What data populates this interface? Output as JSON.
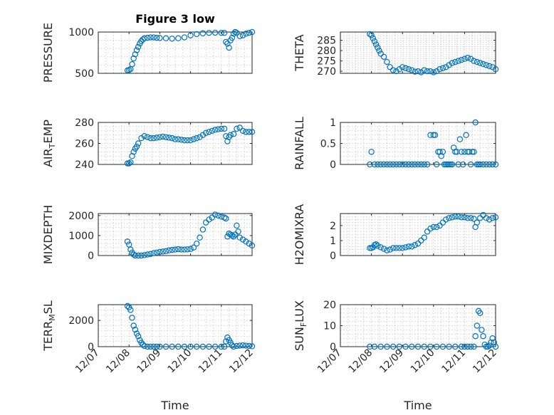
{
  "colors": {
    "marker": "#0072BD",
    "axis": "#262626",
    "grid": "#c8c8c8"
  },
  "chart_data": [
    {
      "type": "scatter",
      "title": "Figure 3 low",
      "ylabel_parts": [
        "PRESSURE"
      ],
      "xlim": [
        0,
        5
      ],
      "ylim": [
        500,
        1000
      ],
      "yticks": [
        500,
        1000
      ],
      "ytick_labels": [
        "500",
        "1000"
      ],
      "xticks": [
        0,
        1,
        2,
        3,
        4,
        5
      ],
      "xtick_labels": [],
      "xlabel": "",
      "grid": true,
      "series": [
        {
          "x": [
            0.95,
            1.0,
            1.05,
            1.1,
            1.15,
            1.2,
            1.25,
            1.3,
            1.35,
            1.4,
            1.45,
            1.5,
            1.6,
            1.7,
            1.8,
            1.9,
            2.0,
            2.2,
            2.4,
            2.6,
            2.8,
            3.0,
            3.2,
            3.4,
            3.6,
            3.8,
            4.0,
            4.1,
            4.15,
            4.2,
            4.25,
            4.3,
            4.35,
            4.4,
            4.45,
            4.5,
            4.6,
            4.7,
            4.8,
            4.9,
            5.0
          ],
          "y": [
            535,
            540,
            550,
            610,
            680,
            730,
            780,
            820,
            860,
            890,
            910,
            925,
            930,
            935,
            935,
            930,
            928,
            925,
            920,
            925,
            935,
            960,
            975,
            985,
            990,
            992,
            990,
            990,
            880,
            860,
            810,
            900,
            930,
            980,
            1000,
            990,
            950,
            960,
            980,
            990,
            1000
          ]
        }
      ]
    },
    {
      "type": "scatter",
      "title": "",
      "ylabel_parts": [
        "THETA"
      ],
      "xlim": [
        0,
        5
      ],
      "ylim": [
        269,
        289
      ],
      "yticks": [
        270,
        275,
        280,
        285
      ],
      "ytick_labels": [
        "270",
        "275",
        "280",
        "285"
      ],
      "xticks": [
        0,
        1,
        2,
        3,
        4,
        5
      ],
      "xtick_labels": [],
      "xlabel": "",
      "grid": true,
      "series": [
        {
          "x": [
            0.95,
            1.0,
            1.05,
            1.1,
            1.15,
            1.2,
            1.25,
            1.3,
            1.4,
            1.5,
            1.6,
            1.7,
            1.8,
            1.9,
            2.0,
            2.1,
            2.2,
            2.3,
            2.4,
            2.5,
            2.6,
            2.7,
            2.8,
            2.9,
            3.0,
            3.1,
            3.2,
            3.3,
            3.4,
            3.5,
            3.6,
            3.7,
            3.8,
            3.9,
            4.0,
            4.1,
            4.2,
            4.3,
            4.4,
            4.5,
            4.6,
            4.7,
            4.8,
            4.9,
            5.0
          ],
          "y": [
            288,
            287.5,
            286,
            284.5,
            283,
            281.5,
            280,
            278.5,
            277,
            274.5,
            272,
            270.5,
            270,
            271,
            272,
            271.5,
            271,
            270.5,
            269.8,
            270,
            269.5,
            270.5,
            270,
            270,
            269.5,
            270,
            271,
            271.5,
            272,
            273,
            274,
            274.5,
            275,
            275.5,
            276,
            276.5,
            276,
            275,
            274.5,
            274,
            273.5,
            273,
            272.5,
            272,
            271
          ]
        }
      ]
    },
    {
      "type": "scatter",
      "title": "",
      "ylabel_parts": [
        "AIR",
        "T",
        "EMP"
      ],
      "xlim": [
        0,
        5
      ],
      "ylim": [
        240,
        280
      ],
      "yticks": [
        240,
        260,
        280
      ],
      "ytick_labels": [
        "240",
        "260",
        "280"
      ],
      "xticks": [
        0,
        1,
        2,
        3,
        4,
        5
      ],
      "xtick_labels": [],
      "xlabel": "",
      "grid": true,
      "series": [
        {
          "x": [
            0.95,
            1.0,
            1.05,
            1.1,
            1.15,
            1.2,
            1.25,
            1.3,
            1.4,
            1.5,
            1.6,
            1.7,
            1.8,
            1.9,
            2.0,
            2.1,
            2.2,
            2.3,
            2.4,
            2.5,
            2.6,
            2.7,
            2.8,
            2.9,
            3.0,
            3.1,
            3.2,
            3.3,
            3.4,
            3.5,
            3.6,
            3.7,
            3.8,
            3.9,
            4.0,
            4.1,
            4.15,
            4.2,
            4.25,
            4.3,
            4.4,
            4.5,
            4.6,
            4.7,
            4.8,
            4.9,
            5.0
          ],
          "y": [
            241,
            241,
            242,
            248,
            252,
            255,
            257,
            260,
            265,
            267,
            266,
            265,
            265,
            265.5,
            266,
            266.5,
            266,
            265.5,
            265,
            264,
            264,
            263.5,
            263,
            263,
            263,
            264,
            265,
            266,
            268,
            270,
            271,
            272,
            273,
            273.5,
            274,
            274,
            267,
            262,
            266,
            268,
            269,
            274,
            275,
            272,
            271,
            271,
            271
          ]
        }
      ]
    },
    {
      "type": "scatter",
      "title": "",
      "ylabel_parts": [
        "RAINFALL"
      ],
      "xlim": [
        0,
        5
      ],
      "ylim": [
        0,
        1
      ],
      "yticks": [
        0,
        0.5,
        1
      ],
      "ytick_labels": [
        "0",
        "0.5",
        "1"
      ],
      "xticks": [
        0,
        1,
        2,
        3,
        4,
        5
      ],
      "xtick_labels": [],
      "xlabel": "",
      "grid": true,
      "series": [
        {
          "x": [
            0.95,
            1.0,
            1.1,
            1.2,
            1.3,
            1.4,
            1.5,
            1.6,
            1.7,
            1.8,
            1.9,
            2.0,
            2.1,
            2.2,
            2.3,
            2.4,
            2.5,
            2.6,
            2.7,
            2.8,
            2.9,
            3.0,
            3.05,
            3.1,
            3.15,
            3.2,
            3.25,
            3.3,
            3.35,
            3.4,
            3.45,
            3.5,
            3.55,
            3.6,
            3.65,
            3.7,
            3.75,
            3.8,
            3.85,
            3.9,
            3.95,
            4.0,
            4.05,
            4.1,
            4.15,
            4.2,
            4.25,
            4.3,
            4.35,
            4.4,
            4.45,
            4.5,
            4.6,
            4.7,
            4.8,
            4.9,
            5.0
          ],
          "y": [
            0,
            0.3,
            0,
            0,
            0,
            0,
            0,
            0,
            0,
            0,
            0,
            0,
            0,
            0,
            0,
            0,
            0,
            0,
            0,
            0,
            0.7,
            0.7,
            0.7,
            0,
            0.3,
            0.3,
            0.2,
            0.3,
            0,
            0,
            0,
            0,
            0,
            0,
            0.4,
            0.3,
            0.3,
            0,
            0.6,
            0.3,
            0,
            0.3,
            0.7,
            0.3,
            0.3,
            0,
            0.3,
            0.3,
            1.0,
            0,
            0,
            0,
            0,
            0,
            0,
            0,
            0
          ]
        }
      ]
    },
    {
      "type": "scatter",
      "title": "",
      "ylabel_parts": [
        "MIXDEPTH"
      ],
      "xlim": [
        0,
        5
      ],
      "ylim": [
        0,
        2100
      ],
      "yticks": [
        0,
        1000,
        2000
      ],
      "ytick_labels": [
        "0",
        "1000",
        "2000"
      ],
      "xticks": [
        0,
        1,
        2,
        3,
        4,
        5
      ],
      "xtick_labels": [],
      "xlabel": "",
      "grid": true,
      "series": [
        {
          "x": [
            0.95,
            1.0,
            1.05,
            1.1,
            1.15,
            1.2,
            1.3,
            1.4,
            1.5,
            1.6,
            1.7,
            1.8,
            1.9,
            2.0,
            2.1,
            2.2,
            2.3,
            2.4,
            2.5,
            2.6,
            2.7,
            2.8,
            2.9,
            3.0,
            3.1,
            3.2,
            3.3,
            3.4,
            3.5,
            3.6,
            3.7,
            3.8,
            3.9,
            4.0,
            4.1,
            4.15,
            4.2,
            4.25,
            4.3,
            4.35,
            4.4,
            4.45,
            4.5,
            4.55,
            4.6,
            4.7,
            4.8,
            4.9,
            5.0
          ],
          "y": [
            700,
            550,
            300,
            150,
            50,
            0,
            0,
            0,
            20,
            50,
            80,
            120,
            150,
            180,
            200,
            220,
            260,
            280,
            300,
            320,
            300,
            300,
            310,
            330,
            400,
            600,
            900,
            1300,
            1650,
            1800,
            1900,
            2050,
            2000,
            1950,
            1900,
            1850,
            950,
            1100,
            1050,
            1000,
            950,
            1050,
            1500,
            1200,
            900,
            800,
            700,
            600,
            500
          ]
        }
      ]
    },
    {
      "type": "scatter",
      "title": "",
      "ylabel_parts": [
        "H2OMIXRA"
      ],
      "xlim": [
        0,
        5
      ],
      "ylim": [
        0,
        2.8
      ],
      "yticks": [
        0,
        1,
        2
      ],
      "ytick_labels": [
        "0",
        "1",
        "2"
      ],
      "xticks": [
        0,
        1,
        2,
        3,
        4,
        5
      ],
      "xtick_labels": [],
      "xlabel": "",
      "grid": true,
      "series": [
        {
          "x": [
            0.95,
            1.0,
            1.05,
            1.1,
            1.15,
            1.2,
            1.3,
            1.4,
            1.5,
            1.6,
            1.7,
            1.8,
            1.9,
            2.0,
            2.1,
            2.2,
            2.3,
            2.4,
            2.5,
            2.6,
            2.7,
            2.8,
            2.9,
            3.0,
            3.1,
            3.2,
            3.3,
            3.4,
            3.5,
            3.6,
            3.7,
            3.8,
            3.9,
            4.0,
            4.1,
            4.2,
            4.3,
            4.35,
            4.4,
            4.5,
            4.6,
            4.7,
            4.8,
            4.9,
            5.0
          ],
          "y": [
            0.5,
            0.5,
            0.55,
            0.7,
            0.75,
            0.65,
            0.55,
            0.45,
            0.35,
            0.4,
            0.5,
            0.5,
            0.5,
            0.5,
            0.55,
            0.6,
            0.6,
            0.7,
            0.8,
            1.0,
            1.2,
            1.6,
            1.8,
            1.9,
            1.9,
            2.0,
            2.2,
            2.4,
            2.5,
            2.55,
            2.6,
            2.6,
            2.55,
            2.55,
            2.5,
            2.5,
            2.45,
            1.9,
            2.2,
            2.5,
            2.7,
            2.5,
            2.4,
            2.5,
            2.55
          ]
        }
      ]
    },
    {
      "type": "scatter",
      "title": "",
      "ylabel_parts": [
        "TERR",
        "M",
        "SL"
      ],
      "xlim": [
        0,
        5
      ],
      "ylim": [
        0,
        3200
      ],
      "yticks": [
        0,
        2000
      ],
      "ytick_labels": [
        "0",
        "2000"
      ],
      "xticks": [
        0,
        1,
        2,
        3,
        4,
        5
      ],
      "xtick_labels": [
        "12/07",
        "12/08",
        "12/09",
        "12/10",
        "12/11",
        "12/12"
      ],
      "xlabel": "Time",
      "grid": true,
      "series": [
        {
          "x": [
            0.95,
            1.0,
            1.05,
            1.1,
            1.15,
            1.2,
            1.25,
            1.3,
            1.35,
            1.4,
            1.45,
            1.5,
            1.6,
            1.7,
            1.8,
            1.9,
            2.0,
            2.2,
            2.4,
            2.6,
            2.8,
            3.0,
            3.2,
            3.4,
            3.6,
            3.8,
            4.0,
            4.1,
            4.15,
            4.2,
            4.25,
            4.3,
            4.35,
            4.4,
            4.5,
            4.6,
            4.7,
            4.8,
            4.9,
            5.0
          ],
          "y": [
            3100,
            3000,
            2800,
            2200,
            1600,
            1300,
            1000,
            800,
            500,
            300,
            150,
            50,
            0,
            0,
            0,
            0,
            0,
            0,
            0,
            0,
            0,
            0,
            0,
            0,
            0,
            0,
            0,
            0,
            400,
            700,
            500,
            300,
            100,
            0,
            50,
            80,
            100,
            80,
            50,
            30
          ]
        }
      ]
    },
    {
      "type": "scatter",
      "title": "",
      "ylabel_parts": [
        "SUN",
        "F",
        "LUX"
      ],
      "xlim": [
        0,
        5
      ],
      "ylim": [
        0,
        20
      ],
      "yticks": [
        0,
        10,
        20
      ],
      "ytick_labels": [
        "0",
        "10",
        "20"
      ],
      "xticks": [
        0,
        1,
        2,
        3,
        4,
        5
      ],
      "xtick_labels": [
        "12/07",
        "12/08",
        "12/09",
        "12/10",
        "12/11",
        "12/12"
      ],
      "xlabel": "Time",
      "grid": true,
      "series": [
        {
          "x": [
            0.95,
            1.1,
            1.3,
            1.5,
            1.7,
            1.9,
            2.1,
            2.3,
            2.5,
            2.7,
            2.9,
            3.1,
            3.3,
            3.5,
            3.7,
            3.9,
            4.0,
            4.1,
            4.2,
            4.3,
            4.35,
            4.4,
            4.45,
            4.5,
            4.55,
            4.6,
            4.65,
            4.7,
            4.75,
            4.8,
            4.85,
            4.9,
            4.95,
            5.0
          ],
          "y": [
            0,
            0,
            0,
            0,
            0,
            0,
            0,
            0,
            0,
            0,
            0,
            0,
            0,
            0,
            0,
            0,
            0,
            0,
            0,
            0,
            5,
            10,
            17,
            16,
            8,
            5,
            1,
            0,
            0,
            0.5,
            2,
            4,
            2,
            0
          ]
        }
      ]
    }
  ]
}
